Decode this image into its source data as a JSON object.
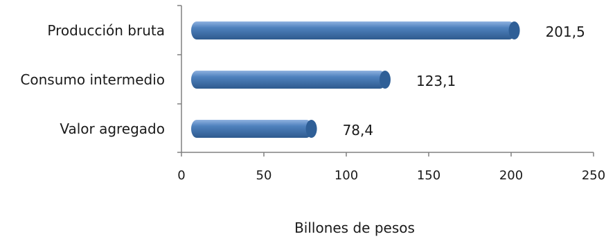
{
  "chart_data": {
    "type": "bar",
    "orientation": "horizontal",
    "style": "3d-cylinder",
    "categories": [
      "Producción bruta",
      "Consumo intermedio",
      "Valor agregado"
    ],
    "values": [
      201.5,
      123.1,
      78.4
    ],
    "data_labels": [
      "201,5",
      "123,1",
      "78,4"
    ],
    "xlabel": "Billones de pesos",
    "xlim": [
      0,
      250
    ],
    "xticks": [
      0,
      50,
      100,
      150,
      200,
      250
    ],
    "xtick_labels": [
      "0",
      "50",
      "100",
      "150",
      "200",
      "250"
    ],
    "grid": false,
    "legend": "none",
    "colors": {
      "bar_body": "#4f81bd",
      "bar_highlight": "#8fb2e0",
      "bar_shadow": "#2e5a8e",
      "bar_cap": "#2f5f97",
      "axis": "#808080"
    }
  }
}
